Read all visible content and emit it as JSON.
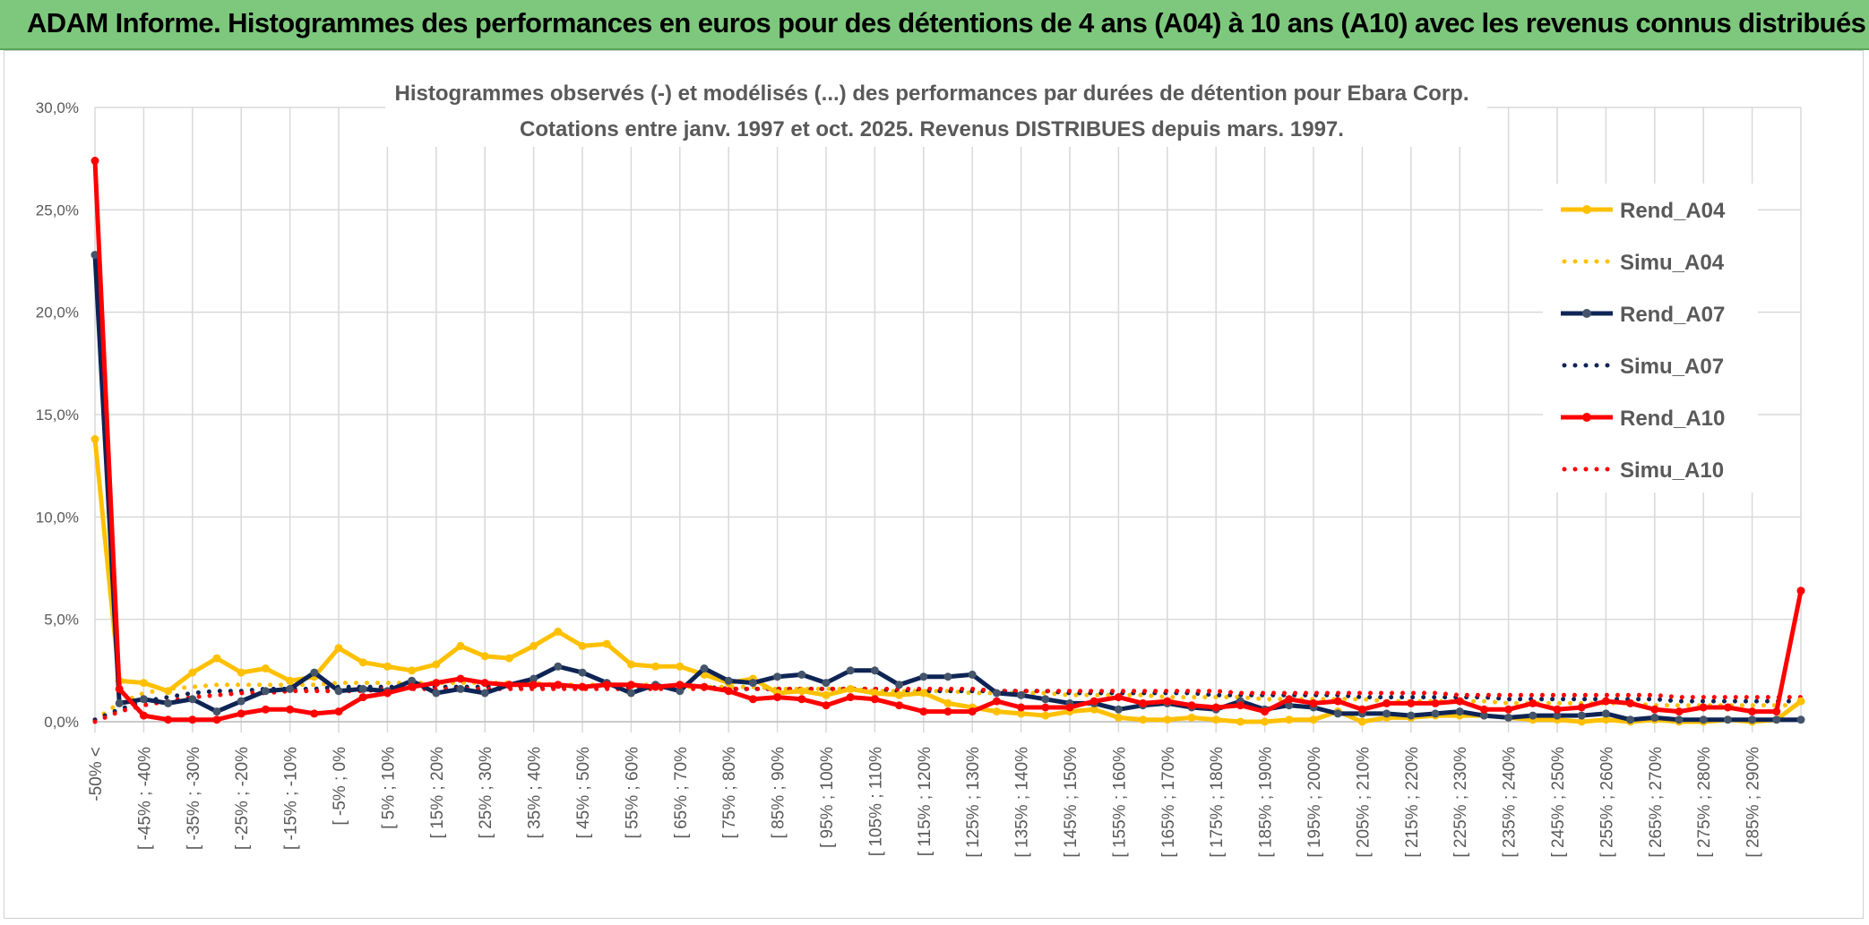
{
  "banner": {
    "title": "ADAM Informe. Histogrammes des performances en euros pour des détentions de 4 ans (A04) à 10 ans (A10) avec les revenus connus distribués"
  },
  "colors": {
    "A04": "#FFC000",
    "A07": "#0E2455",
    "A07_marker": "#44546A",
    "A10": "#FF0000",
    "banner": "#7EC87E",
    "grid": "#D9D9D9"
  },
  "chart_data": {
    "type": "line",
    "title": "Histogrammes observés (-) et modélisés (...) des performances par durées de détention pour Ebara Corp.",
    "subtitle": "Cotations entre janv. 1997 et oct. 2025. Revenus DISTRIBUES depuis mars. 1997.",
    "xlabel": "",
    "ylabel": "",
    "ylim": [
      0,
      30
    ],
    "y_ticks": [
      "0,0%",
      "5,0%",
      "10,0%",
      "15,0%",
      "20,0%",
      "25,0%",
      "30,0%"
    ],
    "y_tick_values": [
      0,
      5,
      10,
      15,
      20,
      25,
      30
    ],
    "grid": true,
    "legend_position": "right",
    "x_tick_labels": [
      "-50% <",
      "[ -45% ; -40%",
      "[ -35% ; -30%",
      "[ -25% ; -20%",
      "[ -15% ; -10%",
      "[ -5% ; 0%",
      "[ 5% ; 10%",
      "[ 15% ; 20%",
      "[ 25% ; 30%",
      "[ 35% ; 40%",
      "[ 45% ; 50%",
      "[ 55% ; 60%",
      "[ 65% ; 70%",
      "[ 75% ; 80%",
      "[ 85% ; 90%",
      "[ 95% ; 100%",
      "[ 105% ; 110%",
      "[ 115% ; 120%",
      "[ 125% ; 130%",
      "[ 135% ; 140%",
      "[ 145% ; 150%",
      "[ 155% ; 160%",
      "[ 165% ; 170%",
      "[ 175% ; 180%",
      "[ 185% ; 190%",
      "[ 195% ; 200%",
      "[ 205% ; 210%",
      "[ 215% ; 220%",
      "[ 225% ; 230%",
      "[ 235% ; 240%",
      "[ 245% ; 250%",
      "[ 255% ; 260%",
      "[ 265% ; 270%",
      "[ 275% ; 280%",
      "[ 285% ; 290%"
    ],
    "n_points": 71,
    "series": [
      {
        "name": "Rend_A04",
        "style": "solid",
        "color": "#FFC000",
        "values": [
          13.8,
          2.0,
          1.9,
          1.5,
          2.4,
          3.1,
          2.4,
          2.6,
          2.0,
          2.2,
          3.6,
          2.9,
          2.7,
          2.5,
          2.8,
          3.7,
          3.2,
          3.1,
          3.7,
          4.4,
          3.7,
          3.8,
          2.8,
          2.7,
          2.7,
          2.3,
          1.9,
          2.1,
          1.4,
          1.5,
          1.3,
          1.6,
          1.4,
          1.3,
          1.4,
          0.9,
          0.7,
          0.5,
          0.4,
          0.3,
          0.5,
          0.6,
          0.2,
          0.1,
          0.1,
          0.2,
          0.1,
          0.0,
          0.0,
          0.1,
          0.1,
          0.5,
          0.0,
          0.2,
          0.2,
          0.3,
          0.3,
          0.3,
          0.2,
          0.1,
          0.1,
          0.0,
          0.1,
          0.0,
          0.1,
          0.0,
          0.0,
          0.1,
          0.0,
          0.1,
          1.0
        ]
      },
      {
        "name": "Simu_A04",
        "style": "dotted",
        "color": "#FFC000",
        "values": [
          0.1,
          0.9,
          1.4,
          1.6,
          1.7,
          1.8,
          1.8,
          1.8,
          1.8,
          1.8,
          1.9,
          1.9,
          1.9,
          1.9,
          1.9,
          1.9,
          1.9,
          1.9,
          1.9,
          1.8,
          1.8,
          1.8,
          1.8,
          1.8,
          1.7,
          1.7,
          1.7,
          1.7,
          1.6,
          1.6,
          1.6,
          1.6,
          1.5,
          1.5,
          1.5,
          1.5,
          1.4,
          1.4,
          1.4,
          1.4,
          1.3,
          1.3,
          1.3,
          1.3,
          1.2,
          1.2,
          1.2,
          1.2,
          1.1,
          1.1,
          1.1,
          1.1,
          1.1,
          1.0,
          1.0,
          1.0,
          1.0,
          1.0,
          0.9,
          0.9,
          0.9,
          0.9,
          0.9,
          0.9,
          0.8,
          0.8,
          0.8,
          0.8,
          0.8,
          0.8,
          0.8
        ]
      },
      {
        "name": "Rend_A07",
        "style": "solid",
        "color": "#0E2455",
        "values": [
          22.8,
          0.9,
          1.1,
          0.9,
          1.1,
          0.5,
          1.0,
          1.5,
          1.6,
          2.4,
          1.5,
          1.6,
          1.5,
          2.0,
          1.4,
          1.6,
          1.4,
          1.8,
          2.1,
          2.7,
          2.4,
          1.9,
          1.4,
          1.8,
          1.5,
          2.6,
          2.0,
          1.9,
          2.2,
          2.3,
          1.9,
          2.5,
          2.5,
          1.8,
          2.2,
          2.2,
          2.3,
          1.4,
          1.3,
          1.1,
          0.9,
          0.9,
          0.6,
          0.8,
          0.9,
          0.7,
          0.6,
          1.0,
          0.6,
          0.8,
          0.7,
          0.4,
          0.4,
          0.4,
          0.3,
          0.4,
          0.5,
          0.3,
          0.2,
          0.3,
          0.3,
          0.3,
          0.4,
          0.1,
          0.2,
          0.1,
          0.1,
          0.1,
          0.1,
          0.1,
          0.1
        ]
      },
      {
        "name": "Simu_A07",
        "style": "dotted",
        "color": "#0E2455",
        "values": [
          0.1,
          0.6,
          1.0,
          1.2,
          1.4,
          1.5,
          1.5,
          1.6,
          1.6,
          1.6,
          1.7,
          1.7,
          1.7,
          1.7,
          1.7,
          1.7,
          1.7,
          1.7,
          1.7,
          1.7,
          1.7,
          1.7,
          1.7,
          1.7,
          1.7,
          1.7,
          1.6,
          1.6,
          1.6,
          1.6,
          1.6,
          1.6,
          1.6,
          1.5,
          1.5,
          1.5,
          1.5,
          1.5,
          1.5,
          1.5,
          1.4,
          1.4,
          1.4,
          1.4,
          1.4,
          1.4,
          1.3,
          1.3,
          1.3,
          1.3,
          1.3,
          1.3,
          1.2,
          1.2,
          1.2,
          1.2,
          1.2,
          1.2,
          1.1,
          1.1,
          1.1,
          1.1,
          1.1,
          1.1,
          1.1,
          1.0,
          1.0,
          1.0,
          1.0,
          1.0,
          1.0
        ]
      },
      {
        "name": "Rend_A10",
        "style": "solid",
        "color": "#FF0000",
        "values": [
          27.4,
          1.6,
          0.3,
          0.1,
          0.1,
          0.1,
          0.4,
          0.6,
          0.6,
          0.4,
          0.5,
          1.2,
          1.4,
          1.7,
          1.9,
          2.1,
          1.9,
          1.8,
          1.8,
          1.8,
          1.7,
          1.8,
          1.8,
          1.7,
          1.8,
          1.7,
          1.5,
          1.1,
          1.2,
          1.1,
          0.8,
          1.2,
          1.1,
          0.8,
          0.5,
          0.5,
          0.5,
          1.0,
          0.7,
          0.7,
          0.7,
          1.0,
          1.2,
          0.9,
          1.0,
          0.8,
          0.7,
          0.8,
          0.5,
          1.1,
          0.9,
          1.0,
          0.6,
          0.9,
          0.9,
          0.9,
          1.0,
          0.6,
          0.6,
          0.9,
          0.6,
          0.7,
          1.0,
          0.9,
          0.6,
          0.5,
          0.7,
          0.7,
          0.5,
          0.5,
          6.4
        ]
      },
      {
        "name": "Simu_A10",
        "style": "dotted",
        "color": "#FF0000",
        "values": [
          0.0,
          0.5,
          0.8,
          1.0,
          1.2,
          1.3,
          1.4,
          1.4,
          1.5,
          1.5,
          1.5,
          1.5,
          1.6,
          1.6,
          1.6,
          1.6,
          1.6,
          1.6,
          1.6,
          1.6,
          1.6,
          1.6,
          1.6,
          1.6,
          1.6,
          1.6,
          1.6,
          1.6,
          1.6,
          1.6,
          1.6,
          1.6,
          1.6,
          1.6,
          1.6,
          1.6,
          1.6,
          1.5,
          1.5,
          1.5,
          1.5,
          1.5,
          1.5,
          1.5,
          1.5,
          1.5,
          1.5,
          1.4,
          1.4,
          1.4,
          1.4,
          1.4,
          1.4,
          1.4,
          1.4,
          1.4,
          1.3,
          1.3,
          1.3,
          1.3,
          1.3,
          1.3,
          1.3,
          1.3,
          1.3,
          1.2,
          1.2,
          1.2,
          1.2,
          1.2,
          1.2
        ]
      }
    ]
  }
}
